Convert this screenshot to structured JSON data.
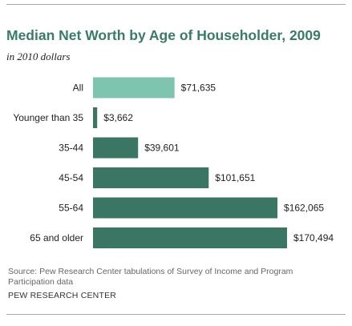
{
  "title": "Median Net Worth by Age of Householder, 2009",
  "subtitle": "in 2010 dollars",
  "source": "Source:  Pew Research Center tabulations of Survey of Income and Program Participation data",
  "credit": "PEW RESEARCH CENTER",
  "colors": {
    "highlight": "#7fc4ae",
    "bar": "#3b7665",
    "title": "#3a7a68"
  },
  "chart_data": {
    "type": "bar",
    "orientation": "horizontal",
    "title": "Median Net Worth by Age of Householder, 2009",
    "subtitle": "in 2010 dollars",
    "categories": [
      "All",
      "Younger than 35",
      "35-44",
      "45-54",
      "55-64",
      "65 and older"
    ],
    "values": [
      71635,
      3662,
      39601,
      101651,
      162065,
      170494
    ],
    "value_labels": [
      "$71,635",
      "$3,662",
      "$39,601",
      "$101,651",
      "$162,065",
      "$170,494"
    ],
    "highlighted_category": "All",
    "xlabel": "",
    "ylabel": "",
    "grid": false,
    "legend": "none"
  }
}
